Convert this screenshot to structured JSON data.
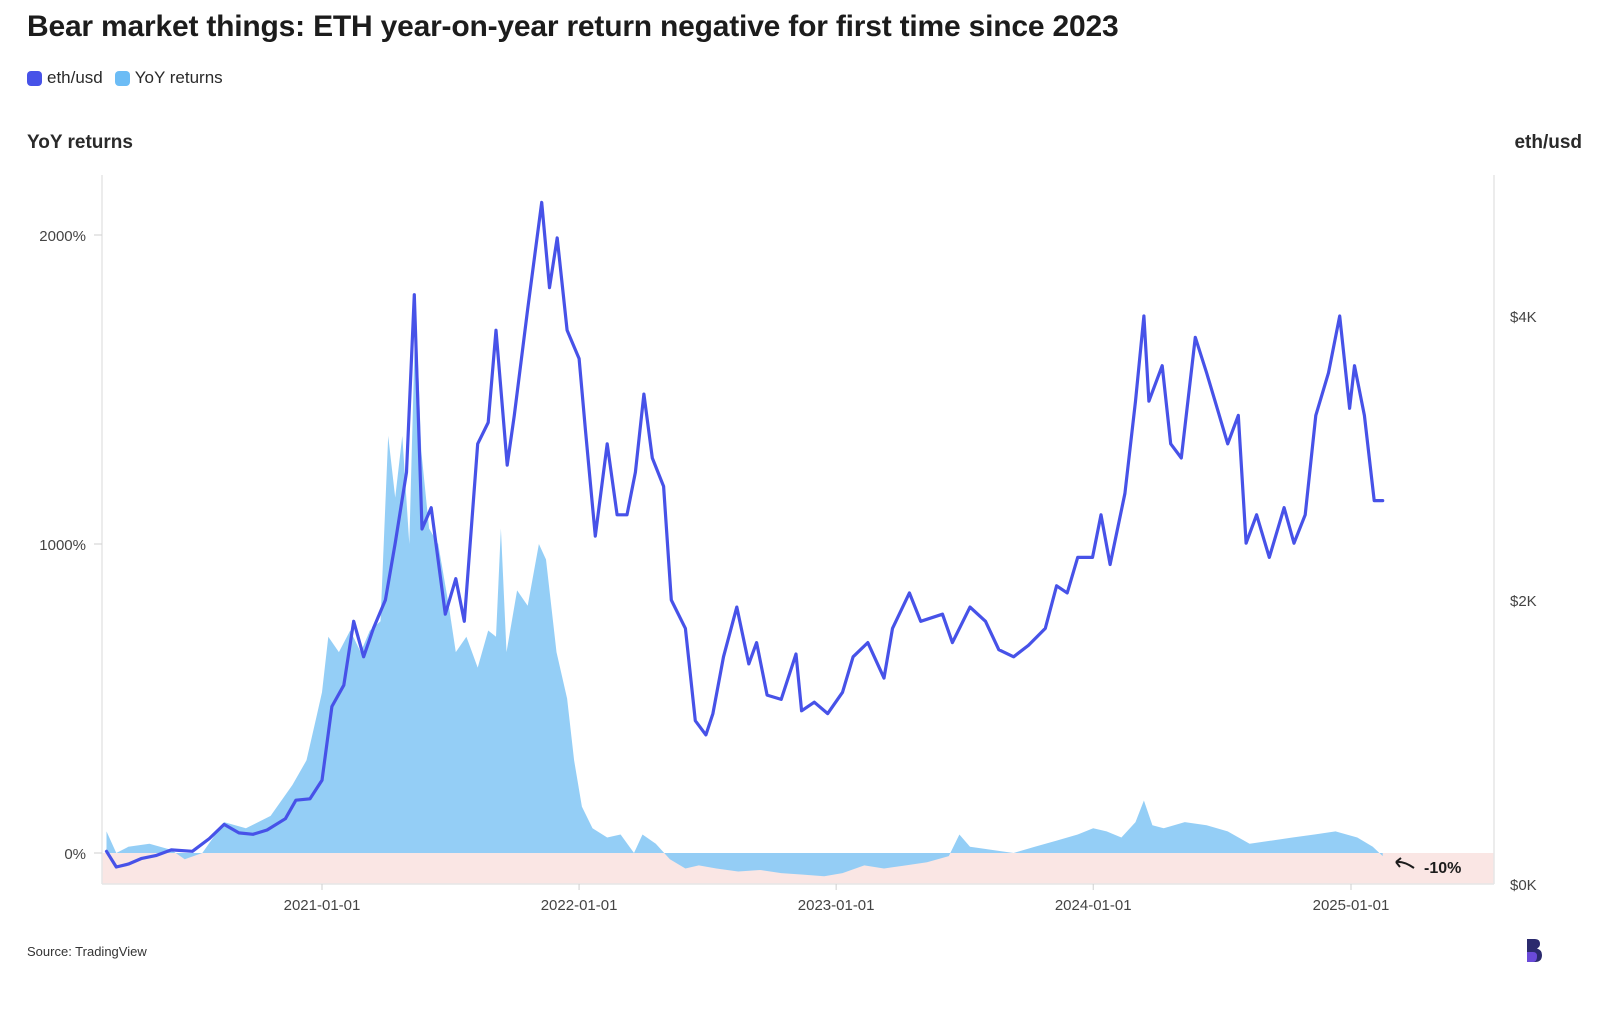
{
  "title": "Bear market things: ETH year-on-year return negative for first time since 2023",
  "legend": [
    {
      "label": "eth/usd",
      "color": "#4752e8"
    },
    {
      "label": "YoY returns",
      "color": "#6cbcf5"
    }
  ],
  "left_axis_title": "YoY returns",
  "right_axis_title": "eth/usd",
  "source": "Source: TradingView",
  "annotation": "-10%",
  "colors": {
    "price_line": "#4752e8",
    "yoy_area": "#8ecbf6",
    "negative_band": "#fae6e4",
    "logo": "#2b2a6e"
  },
  "chart_data": {
    "type": "line",
    "x_ticks": [
      "2021-01-01",
      "2022-01-01",
      "2023-01-01",
      "2024-01-01",
      "2025-01-01"
    ],
    "left_axis": {
      "label": "YoY returns",
      "ticks": [
        "2000%",
        "1000%",
        "0%"
      ],
      "tick_values": [
        2000,
        1000,
        0
      ],
      "range": [
        -100,
        2200
      ]
    },
    "right_axis": {
      "label": "eth/usd",
      "ticks": [
        "$4K",
        "$2K",
        "$0K"
      ],
      "tick_values": [
        4000,
        2000,
        0
      ],
      "range": [
        0,
        4800
      ]
    },
    "series": [
      {
        "name": "eth/usd",
        "axis": "right",
        "type": "line",
        "points": [
          [
            "2020-03-01",
            230
          ],
          [
            "2020-03-15",
            120
          ],
          [
            "2020-04-01",
            140
          ],
          [
            "2020-04-20",
            180
          ],
          [
            "2020-05-10",
            200
          ],
          [
            "2020-06-01",
            240
          ],
          [
            "2020-07-01",
            230
          ],
          [
            "2020-07-25",
            320
          ],
          [
            "2020-08-15",
            420
          ],
          [
            "2020-09-05",
            360
          ],
          [
            "2020-09-25",
            350
          ],
          [
            "2020-10-15",
            380
          ],
          [
            "2020-11-10",
            460
          ],
          [
            "2020-11-25",
            590
          ],
          [
            "2020-12-15",
            600
          ],
          [
            "2021-01-01",
            730
          ],
          [
            "2021-01-15",
            1250
          ],
          [
            "2021-02-01",
            1400
          ],
          [
            "2021-02-15",
            1850
          ],
          [
            "2021-03-01",
            1600
          ],
          [
            "2021-03-15",
            1800
          ],
          [
            "2021-04-01",
            2000
          ],
          [
            "2021-04-15",
            2400
          ],
          [
            "2021-05-01",
            2900
          ],
          [
            "2021-05-12",
            4150
          ],
          [
            "2021-05-23",
            2500
          ],
          [
            "2021-06-05",
            2650
          ],
          [
            "2021-06-25",
            1900
          ],
          [
            "2021-07-10",
            2150
          ],
          [
            "2021-07-22",
            1850
          ],
          [
            "2021-08-10",
            3100
          ],
          [
            "2021-08-25",
            3250
          ],
          [
            "2021-09-05",
            3900
          ],
          [
            "2021-09-21",
            2950
          ],
          [
            "2021-10-01",
            3300
          ],
          [
            "2021-10-20",
            4050
          ],
          [
            "2021-11-09",
            4800
          ],
          [
            "2021-11-20",
            4200
          ],
          [
            "2021-12-01",
            4550
          ],
          [
            "2021-12-15",
            3900
          ],
          [
            "2022-01-01",
            3700
          ],
          [
            "2022-01-10",
            3200
          ],
          [
            "2022-01-24",
            2450
          ],
          [
            "2022-02-10",
            3100
          ],
          [
            "2022-02-24",
            2600
          ],
          [
            "2022-03-10",
            2600
          ],
          [
            "2022-03-22",
            2900
          ],
          [
            "2022-04-03",
            3450
          ],
          [
            "2022-04-15",
            3000
          ],
          [
            "2022-05-01",
            2800
          ],
          [
            "2022-05-12",
            2000
          ],
          [
            "2022-06-01",
            1800
          ],
          [
            "2022-06-15",
            1150
          ],
          [
            "2022-06-30",
            1050
          ],
          [
            "2022-07-10",
            1200
          ],
          [
            "2022-07-25",
            1600
          ],
          [
            "2022-08-13",
            1950
          ],
          [
            "2022-08-30",
            1550
          ],
          [
            "2022-09-10",
            1700
          ],
          [
            "2022-09-25",
            1330
          ],
          [
            "2022-10-15",
            1300
          ],
          [
            "2022-11-05",
            1620
          ],
          [
            "2022-11-13",
            1220
          ],
          [
            "2022-12-01",
            1280
          ],
          [
            "2022-12-20",
            1200
          ],
          [
            "2023-01-10",
            1350
          ],
          [
            "2023-01-25",
            1600
          ],
          [
            "2023-02-15",
            1700
          ],
          [
            "2023-03-10",
            1450
          ],
          [
            "2023-03-22",
            1800
          ],
          [
            "2023-04-15",
            2050
          ],
          [
            "2023-05-01",
            1850
          ],
          [
            "2023-06-01",
            1900
          ],
          [
            "2023-06-15",
            1700
          ],
          [
            "2023-07-10",
            1950
          ],
          [
            "2023-08-01",
            1850
          ],
          [
            "2023-08-20",
            1650
          ],
          [
            "2023-09-10",
            1600
          ],
          [
            "2023-10-01",
            1680
          ],
          [
            "2023-10-25",
            1800
          ],
          [
            "2023-11-10",
            2100
          ],
          [
            "2023-11-25",
            2050
          ],
          [
            "2023-12-10",
            2300
          ],
          [
            "2023-12-31",
            2300
          ],
          [
            "2024-01-12",
            2600
          ],
          [
            "2024-01-25",
            2250
          ],
          [
            "2024-02-15",
            2750
          ],
          [
            "2024-03-01",
            3400
          ],
          [
            "2024-03-13",
            4000
          ],
          [
            "2024-03-20",
            3400
          ],
          [
            "2024-04-08",
            3650
          ],
          [
            "2024-04-20",
            3100
          ],
          [
            "2024-05-05",
            3000
          ],
          [
            "2024-05-25",
            3850
          ],
          [
            "2024-06-10",
            3600
          ],
          [
            "2024-06-25",
            3350
          ],
          [
            "2024-07-10",
            3100
          ],
          [
            "2024-07-25",
            3300
          ],
          [
            "2024-08-05",
            2400
          ],
          [
            "2024-08-20",
            2600
          ],
          [
            "2024-09-07",
            2300
          ],
          [
            "2024-09-28",
            2650
          ],
          [
            "2024-10-12",
            2400
          ],
          [
            "2024-10-28",
            2600
          ],
          [
            "2024-11-12",
            3300
          ],
          [
            "2024-11-30",
            3600
          ],
          [
            "2024-12-16",
            4000
          ],
          [
            "2024-12-30",
            3350
          ],
          [
            "2025-01-06",
            3650
          ],
          [
            "2025-01-20",
            3300
          ],
          [
            "2025-02-03",
            2700
          ],
          [
            "2025-02-15",
            2700
          ]
        ]
      },
      {
        "name": "YoY returns",
        "axis": "left",
        "type": "area",
        "points": [
          [
            "2020-03-01",
            70
          ],
          [
            "2020-03-15",
            0
          ],
          [
            "2020-04-01",
            20
          ],
          [
            "2020-05-01",
            30
          ],
          [
            "2020-06-01",
            10
          ],
          [
            "2020-06-20",
            -20
          ],
          [
            "2020-07-15",
            0
          ],
          [
            "2020-08-15",
            100
          ],
          [
            "2020-09-15",
            80
          ],
          [
            "2020-10-20",
            120
          ],
          [
            "2020-11-20",
            220
          ],
          [
            "2020-12-10",
            300
          ],
          [
            "2020-12-25",
            450
          ],
          [
            "2021-01-01",
            520
          ],
          [
            "2021-01-10",
            700
          ],
          [
            "2021-01-25",
            650
          ],
          [
            "2021-02-10",
            720
          ],
          [
            "2021-02-25",
            650
          ],
          [
            "2021-03-10",
            720
          ],
          [
            "2021-03-25",
            750
          ],
          [
            "2021-04-05",
            1350
          ],
          [
            "2021-04-15",
            1150
          ],
          [
            "2021-04-25",
            1350
          ],
          [
            "2021-05-05",
            1000
          ],
          [
            "2021-05-14",
            1780
          ],
          [
            "2021-05-22",
            1300
          ],
          [
            "2021-06-02",
            1050
          ],
          [
            "2021-06-15",
            1000
          ],
          [
            "2021-06-30",
            800
          ],
          [
            "2021-07-10",
            650
          ],
          [
            "2021-07-25",
            700
          ],
          [
            "2021-08-10",
            600
          ],
          [
            "2021-08-25",
            720
          ],
          [
            "2021-09-05",
            700
          ],
          [
            "2021-09-12",
            1050
          ],
          [
            "2021-09-20",
            650
          ],
          [
            "2021-10-05",
            850
          ],
          [
            "2021-10-20",
            800
          ],
          [
            "2021-11-05",
            1000
          ],
          [
            "2021-11-15",
            950
          ],
          [
            "2021-11-30",
            650
          ],
          [
            "2021-12-15",
            500
          ],
          [
            "2021-12-25",
            300
          ],
          [
            "2022-01-05",
            150
          ],
          [
            "2022-01-20",
            80
          ],
          [
            "2022-02-10",
            50
          ],
          [
            "2022-03-01",
            60
          ],
          [
            "2022-03-20",
            0
          ],
          [
            "2022-04-01",
            60
          ],
          [
            "2022-04-20",
            30
          ],
          [
            "2022-05-10",
            -20
          ],
          [
            "2022-06-01",
            -50
          ],
          [
            "2022-06-20",
            -40
          ],
          [
            "2022-07-15",
            -50
          ],
          [
            "2022-08-15",
            -60
          ],
          [
            "2022-09-15",
            -55
          ],
          [
            "2022-10-15",
            -65
          ],
          [
            "2022-11-15",
            -70
          ],
          [
            "2022-12-15",
            -75
          ],
          [
            "2023-01-10",
            -65
          ],
          [
            "2023-02-10",
            -40
          ],
          [
            "2023-03-10",
            -50
          ],
          [
            "2023-04-10",
            -40
          ],
          [
            "2023-05-10",
            -30
          ],
          [
            "2023-06-10",
            -10
          ],
          [
            "2023-06-25",
            60
          ],
          [
            "2023-07-10",
            20
          ],
          [
            "2023-08-10",
            10
          ],
          [
            "2023-09-10",
            0
          ],
          [
            "2023-10-10",
            20
          ],
          [
            "2023-11-10",
            40
          ],
          [
            "2023-12-10",
            60
          ],
          [
            "2024-01-01",
            80
          ],
          [
            "2024-01-20",
            70
          ],
          [
            "2024-02-10",
            50
          ],
          [
            "2024-03-01",
            100
          ],
          [
            "2024-03-13",
            170
          ],
          [
            "2024-03-25",
            90
          ],
          [
            "2024-04-10",
            80
          ],
          [
            "2024-05-10",
            100
          ],
          [
            "2024-06-10",
            90
          ],
          [
            "2024-07-10",
            70
          ],
          [
            "2024-08-10",
            30
          ],
          [
            "2024-09-10",
            40
          ],
          [
            "2024-10-10",
            50
          ],
          [
            "2024-11-10",
            60
          ],
          [
            "2024-12-10",
            70
          ],
          [
            "2025-01-10",
            50
          ],
          [
            "2025-02-01",
            20
          ],
          [
            "2025-02-15",
            -10
          ]
        ]
      }
    ],
    "negative_region": {
      "from": 0,
      "to": -100
    },
    "grid": false,
    "legend_position": "top-left"
  }
}
